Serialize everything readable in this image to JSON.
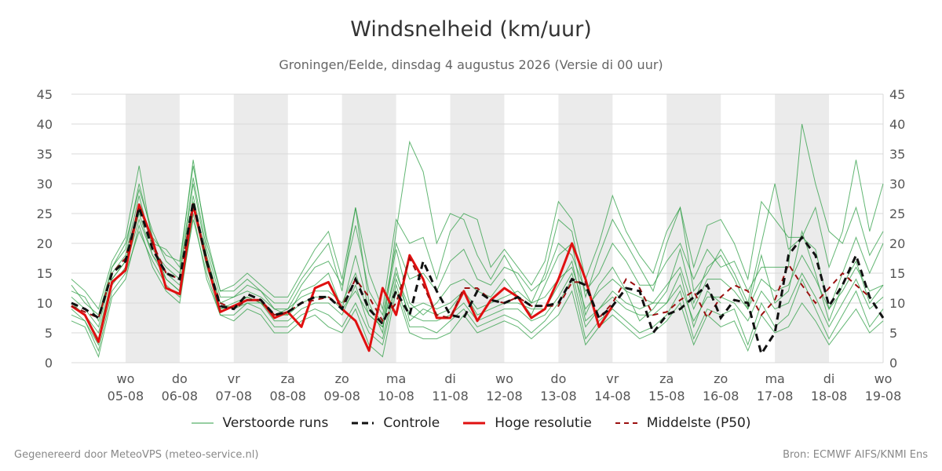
{
  "header": {
    "title": "Windsnelheid (km/uur)",
    "subtitle": "Groningen/Eelde, dinsdag  4 augustus 2026 (Versie di 00 uur)"
  },
  "footer": {
    "left": "Gegenereerd door MeteoVPS (meteo-service.nl)",
    "right": "Bron: ECMWF AIFS/KNMI Ens"
  },
  "colors": {
    "ensemble": "#2e9e44",
    "control": "#111111",
    "high_res": "#e01010",
    "median": "#9b1010",
    "weekend_shade": "#ebebeb",
    "grid": "#d8d8d8"
  },
  "chart_data": {
    "type": "line",
    "title": "Windsnelheid (km/uur)",
    "ylim": [
      0,
      45
    ],
    "yticks": [
      0,
      5,
      10,
      15,
      20,
      25,
      30,
      35,
      40,
      45
    ],
    "x_start_day": 4,
    "x_end_day": 19,
    "x_step_days": 0.25,
    "x_tick_labels": [
      {
        "day": 5,
        "dow": "wo",
        "date": "05-08"
      },
      {
        "day": 6,
        "dow": "do",
        "date": "06-08"
      },
      {
        "day": 7,
        "dow": "vr",
        "date": "07-08"
      },
      {
        "day": 8,
        "dow": "za",
        "date": "08-08"
      },
      {
        "day": 9,
        "dow": "zo",
        "date": "09-08"
      },
      {
        "day": 10,
        "dow": "ma",
        "date": "10-08"
      },
      {
        "day": 11,
        "dow": "di",
        "date": "11-08"
      },
      {
        "day": 12,
        "dow": "wo",
        "date": "12-08"
      },
      {
        "day": 13,
        "dow": "do",
        "date": "13-08"
      },
      {
        "day": 14,
        "dow": "vr",
        "date": "14-08"
      },
      {
        "day": 15,
        "dow": "za",
        "date": "15-08"
      },
      {
        "day": 16,
        "dow": "zo",
        "date": "16-08"
      },
      {
        "day": 17,
        "dow": "ma",
        "date": "17-08"
      },
      {
        "day": 18,
        "dow": "di",
        "date": "18-08"
      },
      {
        "day": 19,
        "dow": "wo",
        "date": "19-08"
      }
    ],
    "shaded_days": [
      [
        5,
        6
      ],
      [
        7,
        8
      ],
      [
        9,
        10
      ],
      [
        11,
        12
      ],
      [
        13,
        14
      ],
      [
        15,
        16
      ],
      [
        17,
        18
      ]
    ],
    "grid": true,
    "legend": "bottom",
    "series": [
      {
        "name": "Verstoorde runs",
        "style": "thin-green",
        "values": [
          9.5,
          8,
          4,
          14,
          17,
          26,
          20,
          14,
          12,
          27,
          17,
          9,
          9.5,
          11,
          10,
          8,
          8,
          10,
          11,
          11,
          9,
          12,
          8,
          6,
          16,
          7,
          9,
          8,
          9,
          12,
          8,
          9,
          10,
          10,
          9,
          9,
          13,
          17,
          7,
          9,
          12,
          10,
          9,
          10,
          10,
          15,
          6,
          12,
          10
        ]
      },
      {
        "name": "",
        "style": "thin-green",
        "values": [
          11,
          9,
          6,
          15,
          18,
          28,
          19,
          16,
          14,
          30,
          18,
          10,
          11,
          12,
          11,
          9,
          8,
          12,
          13,
          15,
          9,
          18,
          9,
          7,
          19,
          10,
          8,
          10,
          13,
          14,
          12,
          11,
          14,
          11,
          8,
          13,
          18,
          20,
          8,
          13,
          16,
          12,
          7,
          9,
          12,
          19,
          10,
          16,
          18,
          14,
          9,
          18,
          10,
          12,
          22,
          15,
          7,
          13,
          17,
          10,
          13
        ]
      },
      {
        "name": "",
        "style": "thin-green",
        "values": [
          8,
          7,
          2,
          12,
          15,
          22,
          17,
          13,
          11,
          24,
          15,
          8,
          8,
          10,
          9,
          6,
          6,
          8,
          9,
          8,
          6,
          10,
          5,
          3,
          13,
          6,
          6,
          5,
          7,
          9,
          6,
          7,
          8,
          7,
          5,
          7,
          10,
          14,
          4,
          7,
          9,
          7,
          5,
          6,
          8,
          12,
          4,
          9,
          8,
          9,
          3,
          10,
          6,
          8,
          14,
          9,
          4,
          8,
          12,
          6,
          9
        ]
      },
      {
        "name": "",
        "style": "thin-green",
        "values": [
          13,
          10,
          8,
          16,
          19,
          30,
          21,
          18,
          17,
          33,
          21,
          12,
          12,
          14,
          12,
          10,
          10,
          14,
          17,
          20,
          12,
          26,
          10,
          5,
          22,
          37,
          32,
          20,
          25,
          24,
          18,
          14,
          18,
          14,
          10,
          15,
          24,
          22,
          11,
          18,
          24,
          20,
          16,
          12,
          20,
          26,
          12,
          15,
          19,
          15,
          10,
          20,
          30,
          19,
          21,
          19,
          9,
          15,
          21,
          15,
          20
        ]
      },
      {
        "name": "",
        "style": "thin-green",
        "values": [
          10,
          8,
          5,
          14,
          17,
          25,
          18,
          15,
          13,
          26,
          16,
          9,
          10,
          11,
          10,
          8,
          9,
          11,
          12,
          12,
          10,
          15,
          8,
          6,
          15,
          9,
          10,
          9,
          10,
          12,
          9,
          10,
          11,
          12,
          10,
          11,
          14,
          16,
          9,
          12,
          14,
          12,
          11,
          10,
          13,
          16,
          9,
          14,
          14,
          12,
          9,
          14,
          12,
          13,
          18,
          14,
          9,
          12,
          16,
          12,
          13
        ]
      },
      {
        "name": "",
        "style": "thin-green",
        "values": [
          12,
          11,
          7,
          16,
          20,
          29,
          22,
          17,
          15,
          31,
          19,
          11,
          11,
          13,
          12,
          9,
          9,
          13,
          16,
          17,
          13,
          23,
          12,
          8,
          20,
          14,
          15,
          12,
          17,
          19,
          14,
          13,
          16,
          15,
          12,
          14,
          20,
          18,
          12,
          15,
          20,
          17,
          13,
          13,
          17,
          20,
          14,
          19,
          16,
          17,
          12,
          16,
          16,
          16,
          40,
          30,
          22,
          20,
          26,
          18,
          22
        ]
      },
      {
        "name": "",
        "style": "thin-green",
        "values": [
          9,
          7,
          3,
          13,
          16,
          24,
          18,
          14,
          12,
          28,
          17,
          10,
          9,
          10,
          10,
          7,
          7,
          9,
          10,
          10,
          8,
          13,
          6,
          4,
          14,
          8,
          7,
          7,
          8,
          10,
          7,
          8,
          9,
          9,
          7,
          8,
          11,
          15,
          6,
          9,
          11,
          9,
          8,
          8,
          10,
          13,
          7,
          11,
          11,
          10,
          7,
          12,
          9,
          10,
          15,
          11,
          6,
          10,
          14,
          9,
          11
        ]
      },
      {
        "name": "",
        "style": "thin-green",
        "values": [
          14,
          12,
          9,
          17,
          21,
          33,
          20,
          19,
          16,
          34,
          20,
          12,
          13,
          15,
          13,
          11,
          11,
          15,
          19,
          22,
          14,
          26,
          15,
          9,
          24,
          20,
          21,
          14,
          22,
          25,
          24,
          16,
          19,
          16,
          13,
          17,
          27,
          24,
          14,
          20,
          28,
          22,
          18,
          15,
          22,
          26,
          16,
          23,
          24,
          20,
          14,
          27,
          24,
          21,
          21,
          26,
          16,
          22,
          34,
          22,
          30
        ]
      },
      {
        "name": "",
        "style": "thin-green",
        "values": [
          7,
          6,
          1,
          11,
          14,
          23,
          16,
          12,
          10,
          25,
          14,
          8,
          7,
          9,
          8,
          5,
          5,
          7,
          8,
          6,
          5,
          9,
          3,
          1,
          12,
          5,
          4,
          4,
          5,
          8,
          5,
          6,
          7,
          6,
          4,
          6,
          8,
          12,
          3,
          6,
          8,
          6,
          4,
          5,
          7,
          10,
          3,
          8,
          6,
          7,
          2,
          8,
          5,
          6,
          10,
          7,
          3,
          6,
          9,
          5,
          7
        ]
      }
    ],
    "control": {
      "name": "Controle",
      "values": [
        10,
        9,
        7.5,
        15,
        17,
        26,
        19,
        15,
        14,
        27,
        17,
        9.5,
        9,
        11.5,
        10.5,
        8,
        8.5,
        10,
        11,
        11,
        9,
        14,
        9,
        6.5,
        12,
        8,
        17,
        12,
        8,
        7.5,
        12,
        10.5,
        10,
        11,
        9.5,
        9.5,
        10,
        14,
        13,
        7.5,
        9.5,
        12.5,
        12,
        5,
        8,
        9,
        11,
        13,
        7.5,
        10.5,
        10,
        1.5,
        5,
        18,
        21,
        18,
        9.5,
        13,
        18,
        11,
        7.5
      ]
    },
    "high_res": {
      "name": "Hoge resolutie",
      "values": [
        9.5,
        8,
        3.5,
        13.5,
        15.5,
        26.5,
        20.5,
        12.5,
        11.5,
        26.5,
        17,
        8.5,
        9.5,
        10.5,
        10.5,
        7.5,
        8.5,
        6,
        12.5,
        13.5,
        9,
        7,
        2,
        12.5,
        8,
        18,
        14,
        7.5,
        7.5,
        12,
        7,
        10.5,
        12.5,
        11,
        7.5,
        9,
        14,
        20,
        14,
        6,
        9.5
      ]
    },
    "median": {
      "name": "Middelste (P50)",
      "values": [
        9.5,
        8.5,
        7.5,
        15,
        17.5,
        26,
        20,
        15,
        14,
        27,
        17,
        10,
        9,
        10.5,
        10.5,
        8,
        8.5,
        10,
        10.5,
        11,
        9.5,
        14,
        11,
        7,
        10,
        17.5,
        13,
        8,
        7.5,
        12.5,
        12.5,
        10.5,
        10,
        11,
        9.5,
        9.5,
        9.5,
        13.5,
        13.5,
        7.5,
        10,
        14,
        12.5,
        8,
        8.5,
        10.5,
        12,
        7.5,
        11,
        13,
        12,
        8,
        10.5,
        16.5,
        13,
        10,
        12.5,
        15,
        13,
        11
      ]
    }
  },
  "legend_labels": {
    "ensemble": "Verstoorde runs",
    "control": "Controle",
    "high_res": "Hoge resolutie",
    "median": "Middelste (P50)"
  }
}
